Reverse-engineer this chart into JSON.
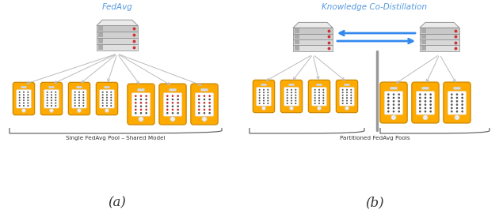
{
  "title_a": "FedAvg",
  "title_b": "Knowledge Co-Distillation",
  "label_a": "Single FedAvg Pool – Shared Model",
  "label_b": "Partitioned FedAvg Pools",
  "caption_a": "(a)",
  "caption_b": "(b)",
  "title_color": "#5599dd",
  "arrow_color": "#3388ee",
  "phone_orange": "#FFAA00",
  "phone_white": "#ffffff",
  "dot_dark": "#555555",
  "dot_red": "#cc2222",
  "divider_color": "#999999",
  "bg_color": "#ffffff",
  "line_color": "#bbbbbb",
  "brace_color": "#555555",
  "text_color": "#333333"
}
